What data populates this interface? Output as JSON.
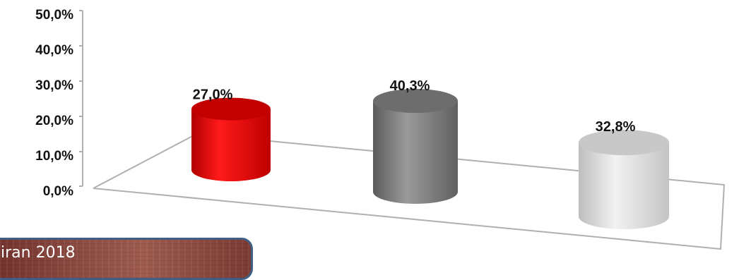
{
  "chart_data": {
    "type": "bar",
    "categories": [
      "",
      "",
      ""
    ],
    "values": [
      27.0,
      40.3,
      32.8
    ],
    "value_labels": [
      "27,0%",
      "40,3%",
      "32,8%"
    ],
    "colors": [
      "#e00000",
      "#7a7a7a",
      "#d2d2d2"
    ],
    "ylim": [
      0,
      50
    ],
    "yticks": [
      "0,0%",
      "10,0%",
      "20,0%",
      "30,0%",
      "40,0%",
      "50,0%"
    ],
    "style": "3d-cylinder",
    "title": "",
    "xlabel": "",
    "ylabel": ""
  },
  "banner": {
    "text": "iran 2018"
  }
}
